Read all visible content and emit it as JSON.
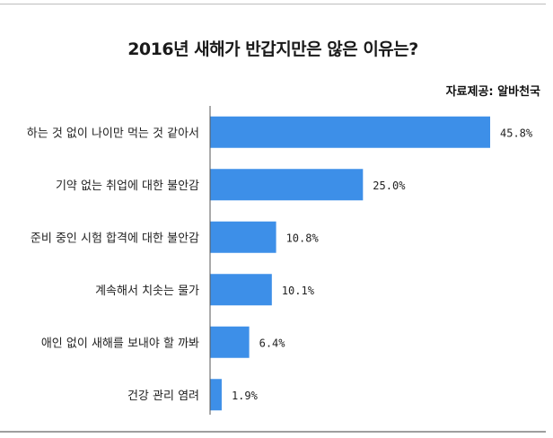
{
  "chart_data": {
    "type": "bar",
    "orientation": "horizontal",
    "title": "2016년 새해가 반갑지만은 않은 이유는?",
    "source": "자료제공: 알바천국",
    "categories": [
      "하는 것 없이 나이만 먹는 것 같아서",
      "기약 없는 취업에 대한 불안감",
      "준비 중인 시험 합격에 대한 불안감",
      "계속해서 치솟는 물가",
      "애인 없이 새해를 보내야 할 까봐",
      "건강 관리 염려"
    ],
    "values": [
      45.8,
      25.0,
      10.8,
      10.1,
      6.4,
      1.9
    ],
    "value_labels": [
      "45.8%",
      "25.0%",
      "10.8%",
      "10.1%",
      "6.4%",
      "1.9%"
    ],
    "unit": "%",
    "bar_color": "#3d8fe8",
    "grid": false,
    "legend": "none"
  }
}
